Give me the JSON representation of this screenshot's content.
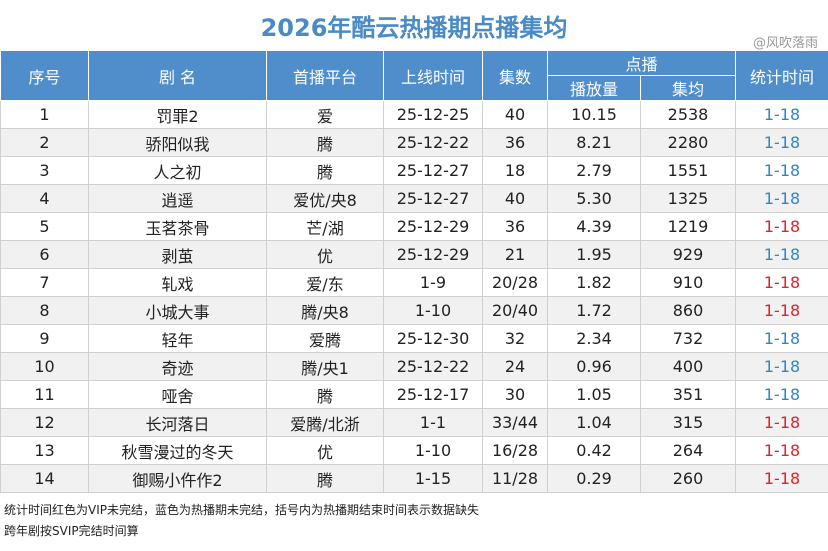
{
  "header": {
    "title": "2026年酷云热播期点播集均",
    "watermark": "@风吹落雨"
  },
  "table": {
    "columns": [
      "序号",
      "剧 名",
      "首播平台",
      "上线时间",
      "集数",
      "点播",
      "统计时间"
    ],
    "subcolumns": [
      "播放量",
      "集均"
    ],
    "rows": [
      [
        "1",
        "罚罪2",
        "爱",
        "25-12-25",
        "40",
        "10.15",
        "2538",
        "1-18"
      ],
      [
        "2",
        "骄阳似我",
        "腾",
        "25-12-22",
        "36",
        "8.21",
        "2280",
        "1-18"
      ],
      [
        "3",
        "人之初",
        "腾",
        "25-12-27",
        "18",
        "2.79",
        "1551",
        "1-18"
      ],
      [
        "4",
        "逍遥",
        "爱优/央8",
        "25-12-27",
        "40",
        "5.30",
        "1325",
        "1-18"
      ],
      [
        "5",
        "玉茗茶骨",
        "芒/湖",
        "25-12-29",
        "36",
        "4.39",
        "1219",
        "1-18"
      ],
      [
        "6",
        "剥茧",
        "优",
        "25-12-29",
        "21",
        "1.95",
        "929",
        "1-18"
      ],
      [
        "7",
        "轧戏",
        "爱/东",
        "1-9",
        "20/28",
        "1.82",
        "910",
        "1-18"
      ],
      [
        "8",
        "小城大事",
        "腾/央8",
        "1-10",
        "20/40",
        "1.72",
        "860",
        "1-18"
      ],
      [
        "9",
        "轻年",
        "爱腾",
        "25-12-30",
        "32",
        "2.34",
        "732",
        "1-18"
      ],
      [
        "10",
        "奇迹",
        "腾/央1",
        "25-12-22",
        "24",
        "0.96",
        "400",
        "1-18"
      ],
      [
        "11",
        "哑舍",
        "腾",
        "25-12-17",
        "30",
        "1.05",
        "351",
        "1-18"
      ],
      [
        "12",
        "长河落日",
        "爱腾/北浙",
        "1-1",
        "33/44",
        "1.04",
        "315",
        "1-18"
      ],
      [
        "13",
        "秋雪漫过的冬天",
        "优",
        "1-10",
        "16/28",
        "0.42",
        "264",
        "1-18"
      ],
      [
        "14",
        "御赐小仵作2",
        "腾",
        "1-15",
        "11/28",
        "0.29",
        "260",
        "1-18"
      ]
    ],
    "time_colors": [
      "#2f86c6",
      "#2f86c6",
      "#2f86c6",
      "#2f86c6",
      "#e3212b",
      "#2f86c6",
      "#e3212b",
      "#e3212b",
      "#2f86c6",
      "#2f86c6",
      "#2f86c6",
      "#e3212b",
      "#e3212b",
      "#e3212b"
    ]
  },
  "notes": [
    "统计时间红色为VIP未完结，蓝色为热播期未完结，括号内为热播期结束时间表示数据缺失",
    "跨年剧按SVIP完结时间算"
  ]
}
